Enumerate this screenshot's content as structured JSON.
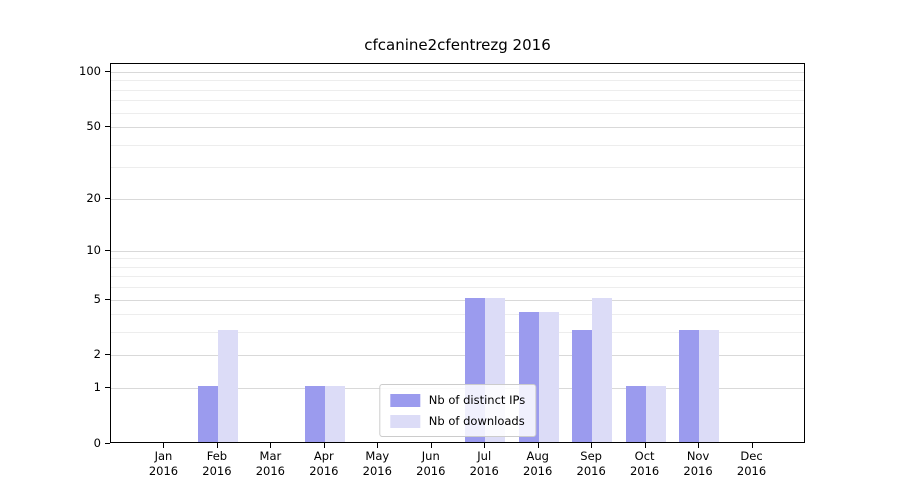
{
  "chart_data": {
    "type": "bar",
    "title": "cfcanine2cfentrezg 2016",
    "categories": [
      "Jan 2016",
      "Feb 2016",
      "Mar 2016",
      "Apr 2016",
      "May 2016",
      "Jun 2016",
      "Jul 2016",
      "Aug 2016",
      "Sep 2016",
      "Oct 2016",
      "Nov 2016",
      "Dec 2016"
    ],
    "series": [
      {
        "name": "Nb of distinct IPs",
        "color": "#9b9bee",
        "values": [
          0,
          1,
          0,
          1,
          0,
          0,
          5,
          4,
          3,
          1,
          3,
          0
        ]
      },
      {
        "name": "Nb of downloads",
        "color": "#dcdcf7",
        "values": [
          0,
          3,
          0,
          1,
          0,
          0,
          5,
          4,
          5,
          1,
          3,
          0
        ]
      }
    ],
    "yticks": [
      0,
      1,
      2,
      5,
      10,
      20,
      50,
      100
    ],
    "minor_gridline_values": [
      3,
      4,
      6,
      7,
      8,
      9,
      30,
      40,
      60,
      70,
      80,
      90
    ],
    "yscale": "log(value+1)",
    "ylim": [
      0,
      110
    ],
    "xlabel": "",
    "ylabel": "",
    "grid": "horizontal",
    "legend_position": "lower center"
  }
}
